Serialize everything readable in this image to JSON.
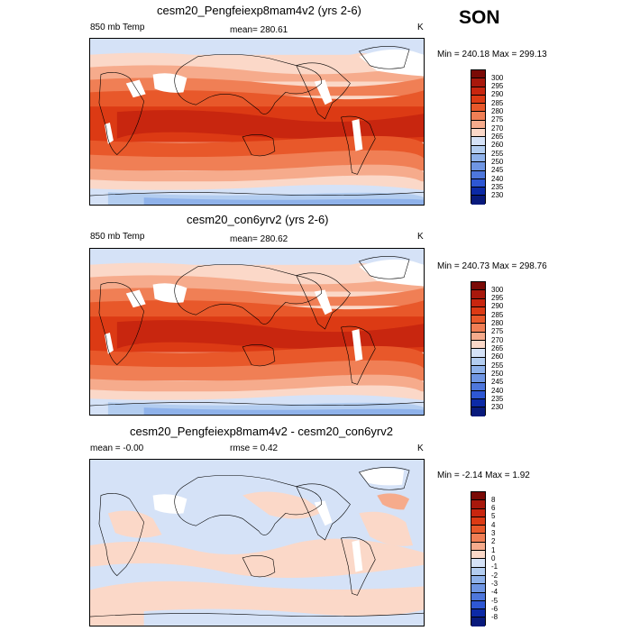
{
  "season": "SON",
  "panels": [
    {
      "title": "cesm20_Pengfeiexp8mam4v2 (yrs 2-6)",
      "left_label": "850 mb Temp",
      "center_label": "mean= 280.61",
      "units": "K",
      "minmax": "Min = 240.18 Max = 299.13",
      "colorbar_labels": [
        "300",
        "295",
        "290",
        "285",
        "280",
        "275",
        "270",
        "265",
        "260",
        "255",
        "250",
        "245",
        "240",
        "235",
        "230"
      ]
    },
    {
      "title": "cesm20_con6yrv2 (yrs 2-6)",
      "left_label": "850 mb Temp",
      "center_label": "mean= 280.62",
      "units": "K",
      "minmax": "Min = 240.73 Max = 298.76",
      "colorbar_labels": [
        "300",
        "295",
        "290",
        "285",
        "280",
        "275",
        "270",
        "265",
        "260",
        "255",
        "250",
        "245",
        "240",
        "235",
        "230"
      ]
    },
    {
      "title": "cesm20_Pengfeiexp8mam4v2 - cesm20_con6yrv2",
      "left_label": "mean =  -0.00",
      "center_label": "rmse =   0.42",
      "units": "K",
      "minmax": "Min =  -2.14 Max =   1.92",
      "colorbar_labels": [
        "8",
        "6",
        "5",
        "4",
        "3",
        "2",
        "1",
        "0",
        "-1",
        "-2",
        "-3",
        "-4",
        "-5",
        "-6",
        "-8"
      ]
    }
  ],
  "colors": {
    "abs_scale": [
      "#7a0a06",
      "#a8180c",
      "#c8260f",
      "#dc3a14",
      "#e8582a",
      "#f07f55",
      "#f6ab8c",
      "#fbd8c8",
      "#ffffff",
      "#d5e2f7",
      "#b3cdf0",
      "#8fb2ea",
      "#6f96e3",
      "#4e77dc",
      "#2e57d4",
      "#0c2aa6",
      "#081a7c"
    ],
    "diff_scale": [
      "#7a0a06",
      "#a8180c",
      "#c8260f",
      "#dc3a14",
      "#e8582a",
      "#f07f55",
      "#f6ab8c",
      "#fbd8c8",
      "#ffffff",
      "#d5e2f7",
      "#b3cdf0",
      "#8fb2ea",
      "#6f96e3",
      "#4e77dc",
      "#2e57d4",
      "#0c2aa6",
      "#081a7c"
    ]
  }
}
